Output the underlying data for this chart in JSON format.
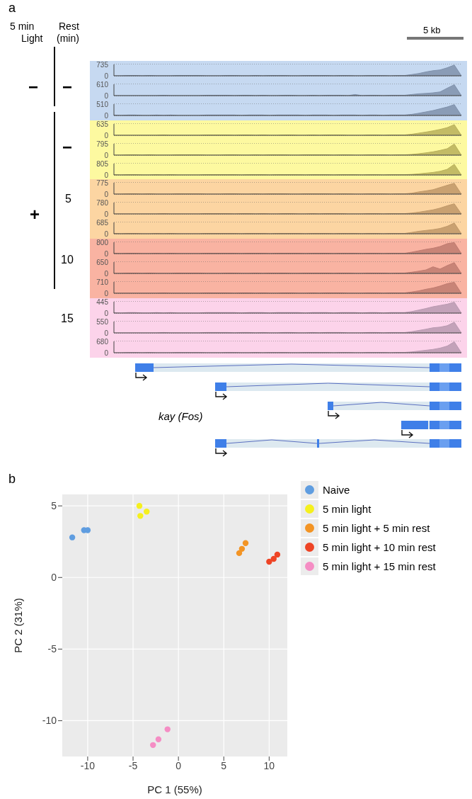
{
  "chart_data": [
    {
      "type": "other",
      "annotations": [
        "a",
        "5 min",
        "Light",
        "Rest",
        "(min)",
        "5 kb",
        "−",
        "−",
        "+",
        "−",
        "5",
        "10",
        "15",
        "kay (Fos)"
      ]
    },
    {
      "type": "area",
      "categories": [
        null,
        null,
        null,
        null,
        null,
        null,
        null,
        null,
        null,
        null,
        null,
        null,
        null,
        null,
        null,
        null,
        null,
        null,
        null,
        null,
        null,
        null,
        null,
        null,
        null,
        null,
        null,
        null,
        null,
        null,
        null,
        null,
        null,
        null,
        null,
        null,
        null,
        null,
        null,
        null,
        null,
        null,
        null,
        null,
        null,
        null,
        null,
        null,
        null,
        null
      ],
      "ylim": [
        0,
        735
      ],
      "yticks": [
        0,
        735
      ],
      "grid": "y",
      "tick_labels": "y",
      "bands": [
        {
          "axis": "y",
          "from": 0,
          "to": 735,
          "color": "#c6d9f1"
        }
      ],
      "series": [
        {
          "color": "#7f91ab",
          "values": [
            0,
            0,
            20,
            20,
            0,
            20,
            0,
            0,
            0,
            20,
            20,
            20,
            20,
            0,
            0,
            0,
            20,
            20,
            0,
            0,
            20,
            0,
            20,
            20,
            20,
            0,
            0,
            20,
            20,
            20,
            20,
            0,
            20,
            20,
            0,
            0,
            20,
            20,
            20,
            0,
            20,
            20,
            80,
            150,
            250,
            330,
            380,
            520,
            700,
            0
          ]
        }
      ]
    },
    {
      "type": "area",
      "categories": [
        null,
        null,
        null,
        null,
        null,
        null,
        null,
        null,
        null,
        null,
        null,
        null,
        null,
        null,
        null,
        null,
        null,
        null,
        null,
        null,
        null,
        null,
        null,
        null,
        null,
        null,
        null,
        null,
        null,
        null,
        null,
        null,
        null,
        null,
        null,
        null,
        null,
        null,
        null,
        null,
        null,
        null,
        null,
        null,
        null,
        null,
        null,
        null,
        null,
        null
      ],
      "ylim": [
        0,
        610
      ],
      "yticks": [
        0,
        610
      ],
      "grid": "y",
      "tick_labels": "y",
      "bands": [
        {
          "axis": "y",
          "from": 0,
          "to": 610,
          "color": "#c6d9f1"
        }
      ],
      "series": [
        {
          "color": "#7f91ab",
          "values": [
            0,
            0,
            0,
            0,
            0,
            0,
            0,
            20,
            0,
            0,
            0,
            0,
            0,
            20,
            20,
            20,
            20,
            0,
            20,
            20,
            0,
            20,
            0,
            0,
            20,
            20,
            0,
            0,
            20,
            0,
            20,
            20,
            20,
            0,
            60,
            0,
            20,
            20,
            0,
            20,
            20,
            20,
            60,
            100,
            120,
            150,
            200,
            400,
            590,
            0
          ]
        }
      ]
    },
    {
      "type": "area",
      "categories": [
        null,
        null,
        null,
        null,
        null,
        null,
        null,
        null,
        null,
        null,
        null,
        null,
        null,
        null,
        null,
        null,
        null,
        null,
        null,
        null,
        null,
        null,
        null,
        null,
        null,
        null,
        null,
        null,
        null,
        null,
        null,
        null,
        null,
        null,
        null,
        null,
        null,
        null,
        null,
        null,
        null,
        null,
        null,
        null,
        null,
        null,
        null,
        null,
        null,
        null
      ],
      "ylim": [
        0,
        510
      ],
      "yticks": [
        0,
        510
      ],
      "grid": "y",
      "tick_labels": "y",
      "bands": [
        {
          "axis": "y",
          "from": 0,
          "to": 510,
          "color": "#c6d9f1"
        }
      ],
      "series": [
        {
          "color": "#7f91ab",
          "values": [
            20,
            0,
            20,
            20,
            0,
            0,
            20,
            0,
            20,
            0,
            0,
            0,
            0,
            20,
            20,
            20,
            20,
            20,
            0,
            20,
            20,
            20,
            0,
            20,
            20,
            20,
            20,
            0,
            20,
            20,
            20,
            0,
            20,
            20,
            20,
            0,
            20,
            20,
            0,
            20,
            20,
            20,
            50,
            100,
            160,
            220,
            300,
            380,
            490,
            0
          ]
        }
      ]
    },
    {
      "type": "area",
      "categories": [
        null,
        null,
        null,
        null,
        null,
        null,
        null,
        null,
        null,
        null,
        null,
        null,
        null,
        null,
        null,
        null,
        null,
        null,
        null,
        null,
        null,
        null,
        null,
        null,
        null,
        null,
        null,
        null,
        null,
        null,
        null,
        null,
        null,
        null,
        null,
        null,
        null,
        null,
        null,
        null,
        null,
        null,
        null,
        null,
        null,
        null,
        null,
        null,
        null,
        null
      ],
      "ylim": [
        0,
        635
      ],
      "yticks": [
        0,
        635
      ],
      "grid": "y",
      "tick_labels": "y",
      "bands": [
        {
          "axis": "y",
          "from": 0,
          "to": 635,
          "color": "#fdf9a0"
        }
      ],
      "series": [
        {
          "color": "#b8b05a",
          "values": [
            0,
            0,
            0,
            0,
            0,
            0,
            0,
            20,
            0,
            0,
            0,
            0,
            0,
            20,
            20,
            20,
            20,
            0,
            20,
            20,
            0,
            20,
            0,
            0,
            20,
            20,
            0,
            0,
            20,
            0,
            20,
            20,
            20,
            0,
            0,
            0,
            20,
            20,
            0,
            20,
            20,
            20,
            60,
            120,
            180,
            250,
            330,
            430,
            600,
            0
          ]
        }
      ]
    },
    {
      "type": "area",
      "categories": [
        null,
        null,
        null,
        null,
        null,
        null,
        null,
        null,
        null,
        null,
        null,
        null,
        null,
        null,
        null,
        null,
        null,
        null,
        null,
        null,
        null,
        null,
        null,
        null,
        null,
        null,
        null,
        null,
        null,
        null,
        null,
        null,
        null,
        null,
        null,
        null,
        null,
        null,
        null,
        null,
        null,
        null,
        null,
        null,
        null,
        null,
        null,
        null,
        null,
        null
      ],
      "ylim": [
        0,
        795
      ],
      "yticks": [
        0,
        795
      ],
      "grid": "y",
      "tick_labels": "y",
      "bands": [
        {
          "axis": "y",
          "from": 0,
          "to": 795,
          "color": "#fdf9a0"
        }
      ],
      "series": [
        {
          "color": "#b8b05a",
          "values": [
            0,
            0,
            20,
            20,
            0,
            20,
            0,
            0,
            0,
            20,
            20,
            20,
            20,
            0,
            0,
            0,
            20,
            20,
            0,
            0,
            20,
            0,
            20,
            20,
            20,
            0,
            0,
            20,
            20,
            20,
            20,
            0,
            20,
            20,
            0,
            0,
            20,
            20,
            20,
            0,
            20,
            20,
            50,
            100,
            160,
            230,
            330,
            450,
            780,
            0
          ]
        }
      ]
    },
    {
      "type": "area",
      "categories": [
        null,
        null,
        null,
        null,
        null,
        null,
        null,
        null,
        null,
        null,
        null,
        null,
        null,
        null,
        null,
        null,
        null,
        null,
        null,
        null,
        null,
        null,
        null,
        null,
        null,
        null,
        null,
        null,
        null,
        null,
        null,
        null,
        null,
        null,
        null,
        null,
        null,
        null,
        null,
        null,
        null,
        null,
        null,
        null,
        null,
        null,
        null,
        null,
        null,
        null
      ],
      "ylim": [
        0,
        805
      ],
      "yticks": [
        0,
        805
      ],
      "grid": "y",
      "tick_labels": "y",
      "bands": [
        {
          "axis": "y",
          "from": 0,
          "to": 805,
          "color": "#fdf9a0"
        }
      ],
      "series": [
        {
          "color": "#b8b05a",
          "values": [
            20,
            0,
            20,
            20,
            0,
            0,
            20,
            0,
            20,
            0,
            0,
            0,
            0,
            20,
            20,
            20,
            20,
            20,
            0,
            20,
            20,
            20,
            0,
            20,
            20,
            20,
            20,
            0,
            20,
            20,
            20,
            0,
            20,
            20,
            20,
            0,
            20,
            20,
            0,
            20,
            20,
            20,
            40,
            80,
            130,
            180,
            260,
            400,
            760,
            0
          ]
        }
      ]
    },
    {
      "type": "area",
      "categories": [
        null,
        null,
        null,
        null,
        null,
        null,
        null,
        null,
        null,
        null,
        null,
        null,
        null,
        null,
        null,
        null,
        null,
        null,
        null,
        null,
        null,
        null,
        null,
        null,
        null,
        null,
        null,
        null,
        null,
        null,
        null,
        null,
        null,
        null,
        null,
        null,
        null,
        null,
        null,
        null,
        null,
        null,
        null,
        null,
        null,
        null,
        null,
        null,
        null,
        null
      ],
      "ylim": [
        0,
        775
      ],
      "yticks": [
        0,
        775
      ],
      "grid": "y",
      "tick_labels": "y",
      "bands": [
        {
          "axis": "y",
          "from": 0,
          "to": 775,
          "color": "#fcd5a2"
        }
      ],
      "series": [
        {
          "color": "#bf9868",
          "values": [
            0,
            0,
            20,
            20,
            0,
            20,
            0,
            0,
            0,
            20,
            20,
            20,
            20,
            0,
            0,
            0,
            20,
            20,
            0,
            0,
            20,
            0,
            20,
            20,
            20,
            0,
            0,
            20,
            20,
            20,
            20,
            0,
            20,
            20,
            0,
            0,
            20,
            20,
            20,
            0,
            20,
            20,
            60,
            150,
            220,
            300,
            450,
            600,
            740,
            0
          ]
        }
      ]
    },
    {
      "type": "area",
      "categories": [
        null,
        null,
        null,
        null,
        null,
        null,
        null,
        null,
        null,
        null,
        null,
        null,
        null,
        null,
        null,
        null,
        null,
        null,
        null,
        null,
        null,
        null,
        null,
        null,
        null,
        null,
        null,
        null,
        null,
        null,
        null,
        null,
        null,
        null,
        null,
        null,
        null,
        null,
        null,
        null,
        null,
        null,
        null,
        null,
        null,
        null,
        null,
        null,
        null,
        null
      ],
      "ylim": [
        0,
        780
      ],
      "yticks": [
        0,
        780
      ],
      "grid": "y",
      "tick_labels": "y",
      "bands": [
        {
          "axis": "y",
          "from": 0,
          "to": 780,
          "color": "#fcd5a2"
        }
      ],
      "series": [
        {
          "color": "#bf9868",
          "values": [
            0,
            0,
            0,
            0,
            0,
            0,
            0,
            20,
            0,
            0,
            0,
            0,
            0,
            20,
            20,
            20,
            20,
            0,
            20,
            20,
            0,
            20,
            0,
            0,
            20,
            20,
            0,
            0,
            20,
            0,
            20,
            20,
            20,
            0,
            0,
            0,
            20,
            20,
            0,
            20,
            20,
            20,
            60,
            120,
            200,
            280,
            400,
            560,
            700,
            0
          ]
        }
      ]
    },
    {
      "type": "area",
      "categories": [
        null,
        null,
        null,
        null,
        null,
        null,
        null,
        null,
        null,
        null,
        null,
        null,
        null,
        null,
        null,
        null,
        null,
        null,
        null,
        null,
        null,
        null,
        null,
        null,
        null,
        null,
        null,
        null,
        null,
        null,
        null,
        null,
        null,
        null,
        null,
        null,
        null,
        null,
        null,
        null,
        null,
        null,
        null,
        null,
        null,
        null,
        null,
        null,
        null,
        null
      ],
      "ylim": [
        0,
        685
      ],
      "yticks": [
        0,
        685
      ],
      "grid": "y",
      "tick_labels": "y",
      "bands": [
        {
          "axis": "y",
          "from": 0,
          "to": 685,
          "color": "#fcd5a2"
        }
      ],
      "series": [
        {
          "color": "#bf9868",
          "values": [
            20,
            0,
            20,
            20,
            0,
            0,
            20,
            0,
            20,
            0,
            0,
            0,
            0,
            20,
            20,
            20,
            20,
            20,
            0,
            20,
            20,
            20,
            0,
            20,
            20,
            20,
            20,
            0,
            20,
            20,
            20,
            0,
            20,
            20,
            20,
            0,
            20,
            20,
            0,
            20,
            20,
            20,
            80,
            150,
            200,
            250,
            320,
            450,
            650,
            0
          ]
        }
      ]
    },
    {
      "type": "area",
      "categories": [
        null,
        null,
        null,
        null,
        null,
        null,
        null,
        null,
        null,
        null,
        null,
        null,
        null,
        null,
        null,
        null,
        null,
        null,
        null,
        null,
        null,
        null,
        null,
        null,
        null,
        null,
        null,
        null,
        null,
        null,
        null,
        null,
        null,
        null,
        null,
        null,
        null,
        null,
        null,
        null,
        null,
        null,
        null,
        null,
        null,
        null,
        null,
        null,
        null,
        null
      ],
      "ylim": [
        0,
        800
      ],
      "yticks": [
        0,
        800
      ],
      "grid": "y",
      "tick_labels": "y",
      "bands": [
        {
          "axis": "y",
          "from": 0,
          "to": 800,
          "color": "#f9b3a2"
        }
      ],
      "series": [
        {
          "color": "#bf7b70",
          "values": [
            20,
            0,
            20,
            20,
            0,
            0,
            20,
            0,
            20,
            0,
            0,
            0,
            0,
            20,
            20,
            20,
            20,
            20,
            0,
            20,
            20,
            20,
            0,
            20,
            20,
            20,
            20,
            0,
            20,
            20,
            20,
            0,
            20,
            20,
            20,
            0,
            20,
            20,
            0,
            20,
            20,
            20,
            100,
            200,
            300,
            380,
            500,
            700,
            780,
            0
          ]
        }
      ]
    },
    {
      "type": "area",
      "categories": [
        null,
        null,
        null,
        null,
        null,
        null,
        null,
        null,
        null,
        null,
        null,
        null,
        null,
        null,
        null,
        null,
        null,
        null,
        null,
        null,
        null,
        null,
        null,
        null,
        null,
        null,
        null,
        null,
        null,
        null,
        null,
        null,
        null,
        null,
        null,
        null,
        null,
        null,
        null,
        null,
        null,
        null,
        null,
        null,
        null,
        null,
        null,
        null,
        null,
        null
      ],
      "ylim": [
        0,
        650
      ],
      "yticks": [
        0,
        650
      ],
      "grid": "y",
      "tick_labels": "y",
      "bands": [
        {
          "axis": "y",
          "from": 0,
          "to": 650,
          "color": "#f9b3a2"
        }
      ],
      "series": [
        {
          "color": "#bf7b70",
          "values": [
            0,
            0,
            20,
            20,
            0,
            20,
            0,
            0,
            0,
            20,
            20,
            20,
            20,
            0,
            0,
            0,
            20,
            20,
            0,
            0,
            20,
            0,
            20,
            20,
            20,
            0,
            0,
            20,
            20,
            20,
            20,
            0,
            20,
            20,
            0,
            0,
            20,
            20,
            20,
            0,
            20,
            20,
            70,
            130,
            200,
            380,
            250,
            450,
            620,
            0
          ]
        }
      ]
    },
    {
      "type": "area",
      "categories": [
        null,
        null,
        null,
        null,
        null,
        null,
        null,
        null,
        null,
        null,
        null,
        null,
        null,
        null,
        null,
        null,
        null,
        null,
        null,
        null,
        null,
        null,
        null,
        null,
        null,
        null,
        null,
        null,
        null,
        null,
        null,
        null,
        null,
        null,
        null,
        null,
        null,
        null,
        null,
        null,
        null,
        null,
        null,
        null,
        null,
        null,
        null,
        null,
        null,
        null
      ],
      "ylim": [
        0,
        710
      ],
      "yticks": [
        0,
        710
      ],
      "grid": "y",
      "tick_labels": "y",
      "bands": [
        {
          "axis": "y",
          "from": 0,
          "to": 710,
          "color": "#f9b3a2"
        }
      ],
      "series": [
        {
          "color": "#bf7b70",
          "values": [
            0,
            0,
            0,
            0,
            0,
            0,
            0,
            20,
            0,
            0,
            0,
            0,
            0,
            20,
            20,
            20,
            20,
            0,
            20,
            20,
            0,
            20,
            0,
            0,
            20,
            20,
            0,
            0,
            20,
            0,
            20,
            20,
            20,
            0,
            0,
            0,
            20,
            20,
            0,
            20,
            20,
            20,
            80,
            150,
            250,
            330,
            450,
            600,
            690,
            0
          ]
        }
      ]
    },
    {
      "type": "area",
      "categories": [
        null,
        null,
        null,
        null,
        null,
        null,
        null,
        null,
        null,
        null,
        null,
        null,
        null,
        null,
        null,
        null,
        null,
        null,
        null,
        null,
        null,
        null,
        null,
        null,
        null,
        null,
        null,
        null,
        null,
        null,
        null,
        null,
        null,
        null,
        null,
        null,
        null,
        null,
        null,
        null,
        null,
        null,
        null,
        null,
        null,
        null,
        null,
        null,
        null,
        null
      ],
      "ylim": [
        0,
        445
      ],
      "yticks": [
        0,
        445
      ],
      "grid": "y",
      "tick_labels": "y",
      "bands": [
        {
          "axis": "y",
          "from": 0,
          "to": 445,
          "color": "#fcd3ea"
        }
      ],
      "series": [
        {
          "color": "#b899b0",
          "values": [
            20,
            0,
            20,
            20,
            0,
            0,
            20,
            0,
            20,
            0,
            0,
            0,
            0,
            20,
            20,
            20,
            20,
            20,
            0,
            20,
            20,
            20,
            0,
            20,
            20,
            20,
            20,
            0,
            20,
            20,
            20,
            0,
            20,
            20,
            20,
            0,
            20,
            20,
            0,
            20,
            20,
            20,
            60,
            120,
            180,
            250,
            300,
            350,
            430,
            0
          ]
        }
      ]
    },
    {
      "type": "area",
      "categories": [
        null,
        null,
        null,
        null,
        null,
        null,
        null,
        null,
        null,
        null,
        null,
        null,
        null,
        null,
        null,
        null,
        null,
        null,
        null,
        null,
        null,
        null,
        null,
        null,
        null,
        null,
        null,
        null,
        null,
        null,
        null,
        null,
        null,
        null,
        null,
        null,
        null,
        null,
        null,
        null,
        null,
        null,
        null,
        null,
        null,
        null,
        null,
        null,
        null,
        null
      ],
      "ylim": [
        0,
        550
      ],
      "yticks": [
        0,
        550
      ],
      "grid": "y",
      "tick_labels": "y",
      "bands": [
        {
          "axis": "y",
          "from": 0,
          "to": 550,
          "color": "#fcd3ea"
        }
      ],
      "series": [
        {
          "color": "#b899b0",
          "values": [
            0,
            0,
            0,
            0,
            0,
            0,
            0,
            20,
            0,
            0,
            0,
            0,
            0,
            20,
            20,
            20,
            20,
            0,
            20,
            20,
            0,
            20,
            0,
            0,
            20,
            20,
            0,
            0,
            20,
            0,
            20,
            20,
            20,
            0,
            0,
            0,
            20,
            20,
            0,
            20,
            20,
            20,
            60,
            120,
            180,
            250,
            280,
            350,
            520,
            0
          ]
        }
      ]
    },
    {
      "type": "area",
      "categories": [
        null,
        null,
        null,
        null,
        null,
        null,
        null,
        null,
        null,
        null,
        null,
        null,
        null,
        null,
        null,
        null,
        null,
        null,
        null,
        null,
        null,
        null,
        null,
        null,
        null,
        null,
        null,
        null,
        null,
        null,
        null,
        null,
        null,
        null,
        null,
        null,
        null,
        null,
        null,
        null,
        null,
        null,
        null,
        null,
        null,
        null,
        null,
        null,
        null,
        null
      ],
      "ylim": [
        0,
        680
      ],
      "yticks": [
        0,
        680
      ],
      "grid": "y",
      "tick_labels": "y",
      "bands": [
        {
          "axis": "y",
          "from": 0,
          "to": 680,
          "color": "#fcd3ea"
        }
      ],
      "series": [
        {
          "color": "#b899b0",
          "values": [
            0,
            0,
            20,
            20,
            0,
            20,
            0,
            0,
            0,
            20,
            20,
            20,
            20,
            0,
            0,
            0,
            20,
            20,
            0,
            0,
            20,
            0,
            20,
            20,
            20,
            0,
            0,
            20,
            20,
            20,
            20,
            0,
            20,
            20,
            0,
            0,
            20,
            20,
            20,
            0,
            20,
            20,
            50,
            100,
            150,
            200,
            280,
            400,
            660,
            0
          ]
        }
      ]
    },
    {
      "type": "scatter",
      "annotations": [
        "b"
      ],
      "xlabel": "PC 1 (55%)",
      "ylabel": "PC 2 (31%)",
      "xlim": [
        -12.8,
        12
      ],
      "ylim": [
        -12.5,
        5.8
      ],
      "xticks": [
        -10,
        -5,
        0,
        5,
        10
      ],
      "yticks": [
        -10,
        -5,
        0,
        5
      ],
      "grid": true,
      "legend": "right",
      "marker": "circle",
      "series": [
        {
          "name": "Naive",
          "color": "#5f9de0",
          "x": [
            -11.7,
            -10.4,
            -10.0
          ],
          "values": [
            2.8,
            3.3,
            3.3
          ]
        },
        {
          "name": "5 min light",
          "color": "#f5f01e",
          "x": [
            -4.3,
            -3.5,
            -4.2
          ],
          "values": [
            5.0,
            4.6,
            4.3
          ]
        },
        {
          "name": "5 min light + 5 min rest",
          "color": "#f39424",
          "x": [
            7.4,
            7.0,
            6.7
          ],
          "values": [
            2.4,
            2.0,
            1.7
          ]
        },
        {
          "name": "5 min light + 10 min rest",
          "color": "#ee4425",
          "x": [
            10.9,
            10.5,
            10.0
          ],
          "values": [
            1.6,
            1.3,
            1.1
          ]
        },
        {
          "name": "5 min light + 15 min rest",
          "color": "#f58dc4",
          "x": [
            -1.2,
            -2.2,
            -2.8
          ],
          "values": [
            -10.6,
            -11.3,
            -11.7
          ]
        }
      ]
    }
  ]
}
